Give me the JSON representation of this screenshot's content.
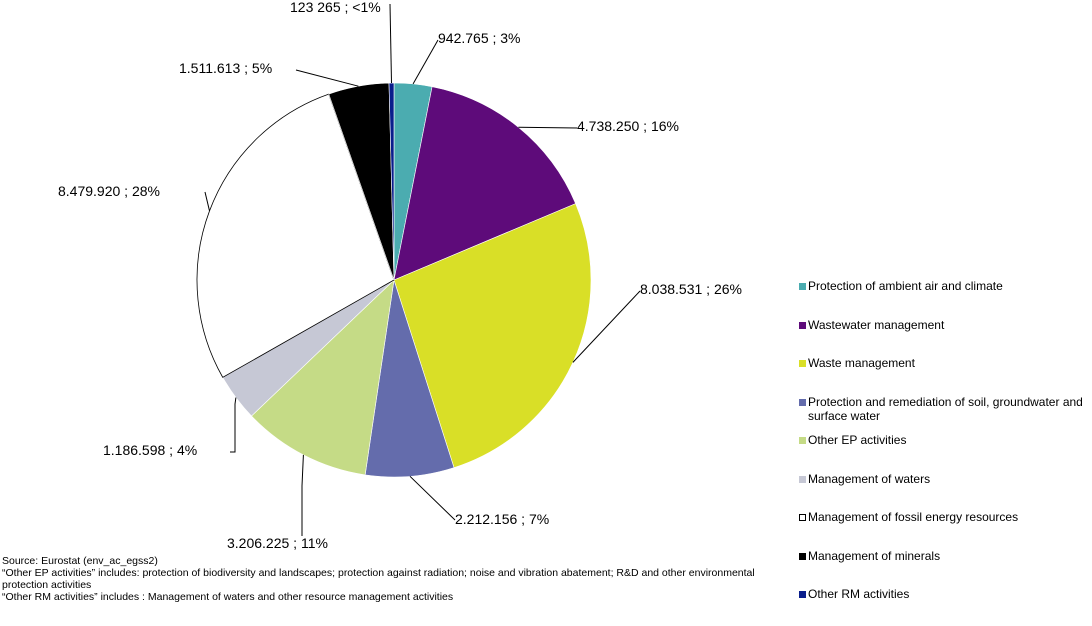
{
  "chart_data": {
    "type": "pie",
    "start_angle_deg": 0,
    "direction": "clockwise",
    "legend_position": "right",
    "slices": [
      {
        "name": "Protection of ambient air and climate",
        "value": 942765,
        "value_label": "942.765",
        "percent_label": "3%",
        "color": "#4BACB0"
      },
      {
        "name": "Wastewater management",
        "value": 4738250,
        "value_label": "4.738.250",
        "percent_label": "16%",
        "color": "#5E0B7A"
      },
      {
        "name": "Waste management",
        "value": 8038531,
        "value_label": "8.038.531",
        "percent_label": "26%",
        "color": "#D9DF27"
      },
      {
        "name": "Protection and remediation of soil, groundwater and surface water",
        "value": 2212156,
        "value_label": "2.212.156",
        "percent_label": "7%",
        "color": "#646CAC"
      },
      {
        "name": "Other EP activities",
        "value": 3206225,
        "value_label": "3.206.225",
        "percent_label": "11%",
        "color": "#C5DB86"
      },
      {
        "name": "Management of waters",
        "value": 1186598,
        "value_label": "1.186.598",
        "percent_label": "4%",
        "color": "#C6C8D5"
      },
      {
        "name": "Management of fossil energy resources",
        "value": 8479920,
        "value_label": "8.479.920",
        "percent_label": "28%",
        "color": "#FFFFFF"
      },
      {
        "name": "Management of minerals",
        "value": 1511613,
        "value_label": "1.511.613",
        "percent_label": "5%",
        "color": "#000000"
      },
      {
        "name": "Other RM activities",
        "value": 123265,
        "value_label": "123 265",
        "percent_label": "<1%",
        "color": "#0A1E8C"
      }
    ]
  },
  "footnotes": {
    "source": "Source: Eurostat (env_ac_egss2)",
    "note_ep": "“Other EP activities” includes: protection of biodiversity and landscapes; protection against radiation; noise and vibration abatement; R&D and other environmental protection activities",
    "note_rm": "“Other RM activities” includes : Management of waters and other resource management activities"
  }
}
